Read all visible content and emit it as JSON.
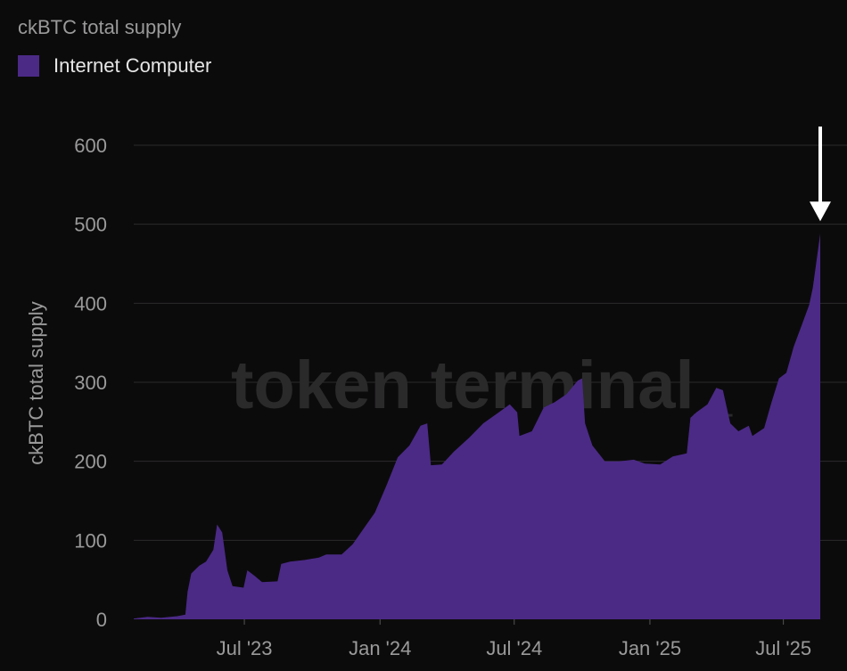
{
  "chart_title": "ckBTC total supply",
  "watermark": "token terminal_",
  "colors": {
    "background": "#0c0b0c",
    "series": "#4b2a86",
    "arrow": "#ffffff",
    "grid": "#2b2b2b"
  },
  "chart_data": {
    "type": "area",
    "title": "ckBTC total supply",
    "xlabel": "",
    "ylabel": "ckBTC total supply",
    "ylim": [
      0,
      600
    ],
    "yticks": [
      0,
      100,
      200,
      300,
      400,
      500,
      600
    ],
    "xticks": [
      "Jul '23",
      "Jan '24",
      "Jul '24",
      "Jan '25",
      "Jul '25"
    ],
    "grid": true,
    "legend_position": "top-left",
    "annotation": "down-arrow-at-latest-value",
    "series": [
      {
        "name": "Internet Computer",
        "color": "#4b2a86",
        "points": [
          [
            "2023-02-01",
            1
          ],
          [
            "2023-02-20",
            3
          ],
          [
            "2023-03-10",
            2
          ],
          [
            "2023-04-01",
            4
          ],
          [
            "2023-04-12",
            6
          ],
          [
            "2023-04-15",
            35
          ],
          [
            "2023-04-20",
            58
          ],
          [
            "2023-05-01",
            68
          ],
          [
            "2023-05-10",
            73
          ],
          [
            "2023-05-20",
            88
          ],
          [
            "2023-05-25",
            120
          ],
          [
            "2023-06-01",
            110
          ],
          [
            "2023-06-08",
            62
          ],
          [
            "2023-06-15",
            42
          ],
          [
            "2023-06-30",
            40
          ],
          [
            "2023-07-05",
            62
          ],
          [
            "2023-07-15",
            55
          ],
          [
            "2023-07-25",
            47
          ],
          [
            "2023-08-15",
            48
          ],
          [
            "2023-08-20",
            70
          ],
          [
            "2023-09-01",
            73
          ],
          [
            "2023-09-20",
            75
          ],
          [
            "2023-10-10",
            78
          ],
          [
            "2023-10-20",
            82
          ],
          [
            "2023-11-10",
            82
          ],
          [
            "2023-11-25",
            95
          ],
          [
            "2023-12-10",
            115
          ],
          [
            "2023-12-25",
            135
          ],
          [
            "2024-01-10",
            170
          ],
          [
            "2024-01-25",
            205
          ],
          [
            "2024-02-10",
            220
          ],
          [
            "2024-02-25",
            245
          ],
          [
            "2024-03-05",
            248
          ],
          [
            "2024-03-10",
            195
          ],
          [
            "2024-03-25",
            196
          ],
          [
            "2024-04-10",
            212
          ],
          [
            "2024-05-01",
            230
          ],
          [
            "2024-05-20",
            248
          ],
          [
            "2024-06-10",
            262
          ],
          [
            "2024-06-25",
            272
          ],
          [
            "2024-07-05",
            262
          ],
          [
            "2024-07-08",
            232
          ],
          [
            "2024-07-25",
            238
          ],
          [
            "2024-08-10",
            268
          ],
          [
            "2024-08-25",
            275
          ],
          [
            "2024-09-10",
            285
          ],
          [
            "2024-09-25",
            302
          ],
          [
            "2024-10-01",
            305
          ],
          [
            "2024-10-05",
            248
          ],
          [
            "2024-10-15",
            220
          ],
          [
            "2024-11-01",
            200
          ],
          [
            "2024-11-20",
            200
          ],
          [
            "2024-12-10",
            202
          ],
          [
            "2024-12-25",
            197
          ],
          [
            "2025-01-15",
            196
          ],
          [
            "2025-02-01",
            206
          ],
          [
            "2025-02-20",
            210
          ],
          [
            "2025-02-25",
            255
          ],
          [
            "2025-03-05",
            262
          ],
          [
            "2025-03-20",
            272
          ],
          [
            "2025-04-01",
            293
          ],
          [
            "2025-04-10",
            290
          ],
          [
            "2025-04-20",
            248
          ],
          [
            "2025-05-01",
            238
          ],
          [
            "2025-05-15",
            245
          ],
          [
            "2025-05-20",
            232
          ],
          [
            "2025-06-05",
            242
          ],
          [
            "2025-06-15",
            275
          ],
          [
            "2025-06-25",
            305
          ],
          [
            "2025-07-05",
            312
          ],
          [
            "2025-07-15",
            345
          ],
          [
            "2025-07-25",
            370
          ],
          [
            "2025-08-05",
            398
          ],
          [
            "2025-08-10",
            420
          ],
          [
            "2025-08-20",
            488
          ]
        ]
      }
    ]
  }
}
